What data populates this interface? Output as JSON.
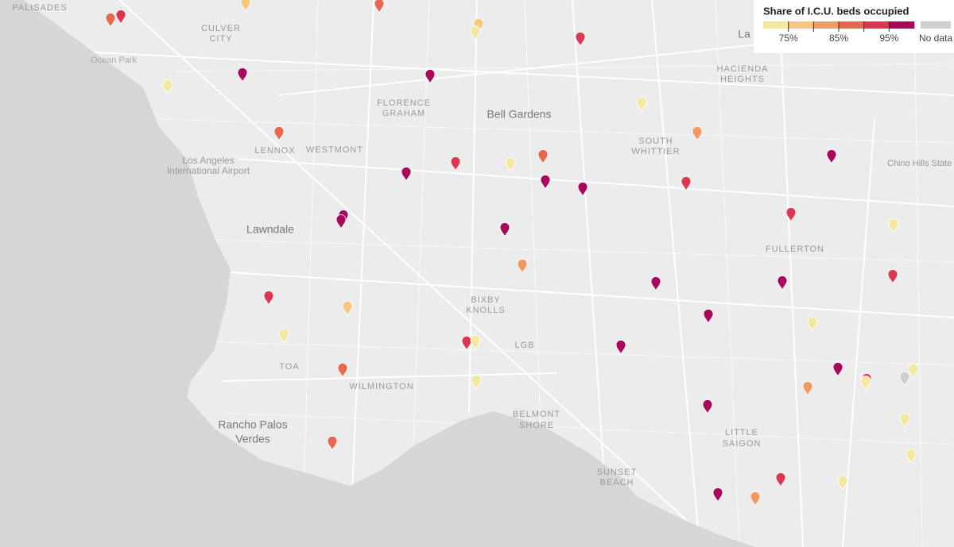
{
  "legend": {
    "title": "Share of I.C.U. beds occupied",
    "lim": [
      70,
      100
    ],
    "colors": [
      "#f2e8a0",
      "#f6c77c",
      "#f29a62",
      "#e8674e",
      "#dc3650",
      "#a8075a"
    ],
    "ticks": [
      {
        "value": 75,
        "label": "75%"
      },
      {
        "value": 80,
        "label": ""
      },
      {
        "value": 85,
        "label": "85%"
      },
      {
        "value": 90,
        "label": ""
      },
      {
        "value": 95,
        "label": "95%"
      }
    ],
    "no_data_label": "No data",
    "no_data_color": "#cfcfcf"
  },
  "places": [
    "PALISADES",
    "CULVER",
    "CITY",
    "Ocean Park",
    "Los Angeles",
    "International Airport",
    "LENNOX",
    "WESTMONT",
    "FLORENCE",
    "GRAHAM",
    "Bell Gardens",
    "SOUTH",
    "WHITTIER",
    "HACIENDA",
    "HEIGHTS",
    "La",
    "Lawndale",
    "Chino Hills State",
    "FULLERTON",
    "BIXBY",
    "KNOLLS",
    "LGB",
    "TOA",
    "WILMINGTON",
    "Rancho Palos",
    "Verdes",
    "BELMONT",
    "SHORE",
    "LITTLE",
    "SAIGON",
    "SUNSET",
    "BEACH"
  ]
}
